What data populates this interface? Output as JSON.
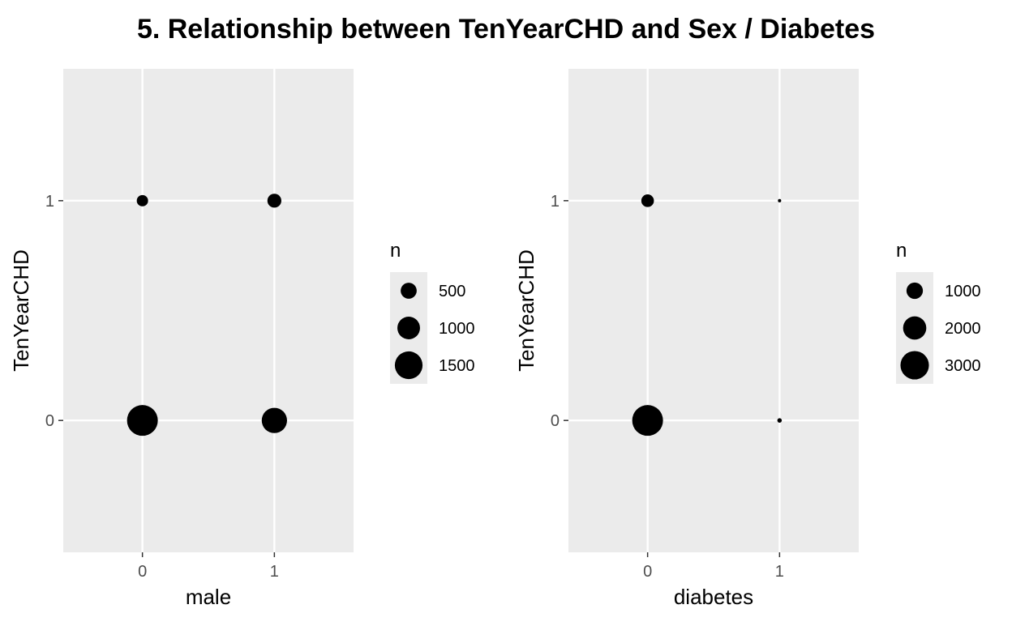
{
  "title": "5. Relationship between TenYearCHD and Sex / Diabetes",
  "colors": {
    "panel_background": "#ebebeb",
    "grid": "#ffffff",
    "point": "#000000",
    "tick": "#333333"
  },
  "chart_data": [
    {
      "type": "scatter",
      "xlabel": "male",
      "ylabel": "TenYearCHD",
      "x_ticks": [
        "0",
        "1"
      ],
      "y_ticks": [
        "0",
        "1"
      ],
      "xlim": [
        -0.6,
        1.6
      ],
      "ylim": [
        -0.6,
        1.6
      ],
      "grid": true,
      "points": [
        {
          "x": 0,
          "y": 0,
          "n": 1850
        },
        {
          "x": 1,
          "y": 0,
          "n": 1250
        },
        {
          "x": 0,
          "y": 1,
          "n": 250
        },
        {
          "x": 1,
          "y": 1,
          "n": 380
        }
      ],
      "size_legend": {
        "title": "n",
        "position": "right",
        "entries": [
          {
            "label": "500",
            "value": 500
          },
          {
            "label": "1000",
            "value": 1000
          },
          {
            "label": "1500",
            "value": 1500
          }
        ]
      }
    },
    {
      "type": "scatter",
      "xlabel": "diabetes",
      "ylabel": "TenYearCHD",
      "x_ticks": [
        "0",
        "1"
      ],
      "y_ticks": [
        "0",
        "1"
      ],
      "xlim": [
        -0.6,
        1.6
      ],
      "ylim": [
        -0.6,
        1.6
      ],
      "grid": true,
      "points": [
        {
          "x": 0,
          "y": 0,
          "n": 3520
        },
        {
          "x": 1,
          "y": 0,
          "n": 75
        },
        {
          "x": 0,
          "y": 1,
          "n": 590
        },
        {
          "x": 1,
          "y": 1,
          "n": 40
        }
      ],
      "size_legend": {
        "title": "n",
        "position": "right",
        "entries": [
          {
            "label": "1000",
            "value": 1000
          },
          {
            "label": "2000",
            "value": 2000
          },
          {
            "label": "3000",
            "value": 3000
          }
        ]
      }
    }
  ]
}
